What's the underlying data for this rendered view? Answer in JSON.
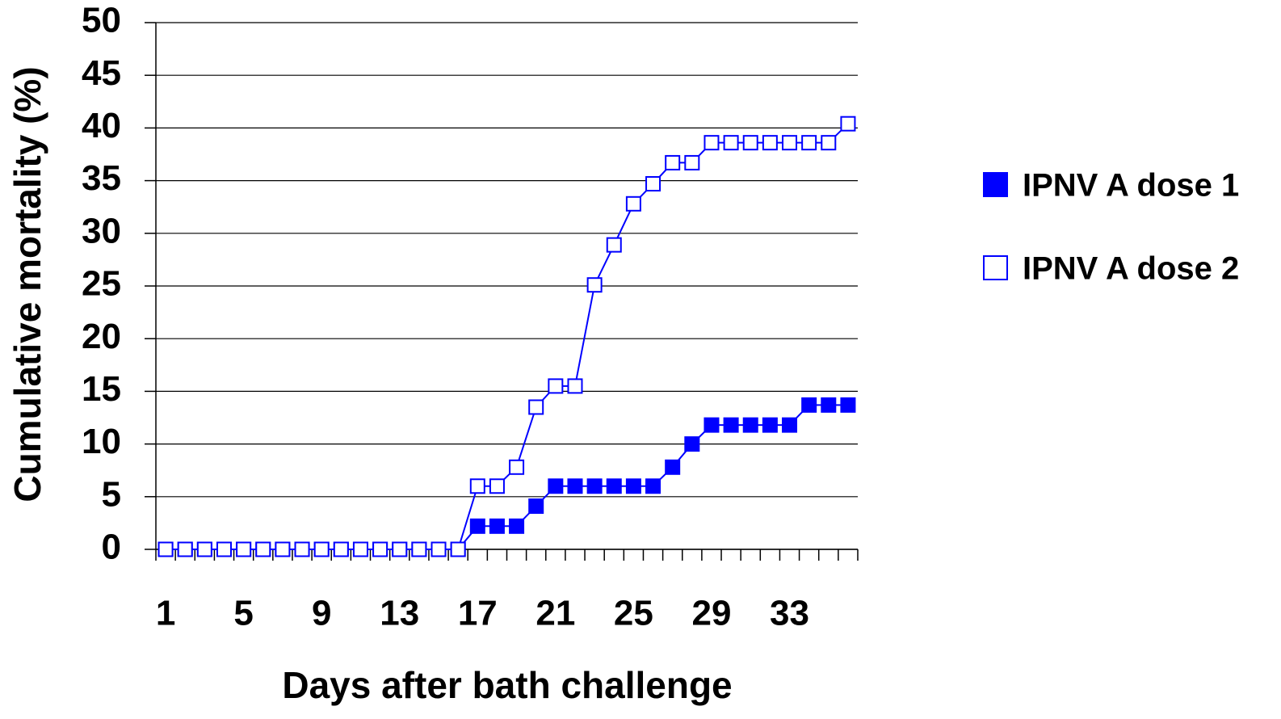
{
  "chart_data": {
    "type": "line",
    "x_label": "Days after bath challenge",
    "y_label": "Cumulative mortality (%)",
    "categories": [
      "1",
      null,
      null,
      null,
      "5",
      null,
      null,
      null,
      "9",
      null,
      null,
      null,
      "13",
      null,
      null,
      null,
      "17",
      null,
      null,
      null,
      "21",
      null,
      null,
      null,
      "25",
      null,
      null,
      null,
      "29",
      null,
      null,
      null,
      "33",
      null,
      null,
      null
    ],
    "series": [
      {
        "name": "IPNV A dose 1",
        "color": "#0000ff",
        "filled": true,
        "values": [
          0,
          0,
          0,
          0,
          0,
          0,
          0,
          0,
          0,
          0,
          0,
          0,
          0,
          0,
          0,
          0,
          2.2,
          2.2,
          2.2,
          4.1,
          6,
          6,
          6,
          6,
          6,
          6,
          7.8,
          10,
          11.8,
          11.8,
          11.8,
          11.8,
          11.8,
          13.7,
          13.7,
          13.7
        ]
      },
      {
        "name": "IPNV A dose 2",
        "color": "#0000ff",
        "filled": false,
        "values": [
          0,
          0,
          0,
          0,
          0,
          0,
          0,
          0,
          0,
          0,
          0,
          0,
          0,
          0,
          0,
          0,
          6,
          6,
          7.8,
          13.5,
          15.5,
          15.5,
          25.1,
          28.9,
          32.8,
          34.7,
          36.7,
          36.7,
          38.6,
          38.6,
          38.6,
          38.6,
          38.6,
          38.6,
          38.6,
          40.4
        ]
      }
    ],
    "ylim": [
      0,
      50
    ],
    "yticks": [
      0,
      5,
      10,
      15,
      20,
      25,
      30,
      35,
      40,
      45,
      50
    ],
    "grid": true,
    "legend": "right"
  }
}
